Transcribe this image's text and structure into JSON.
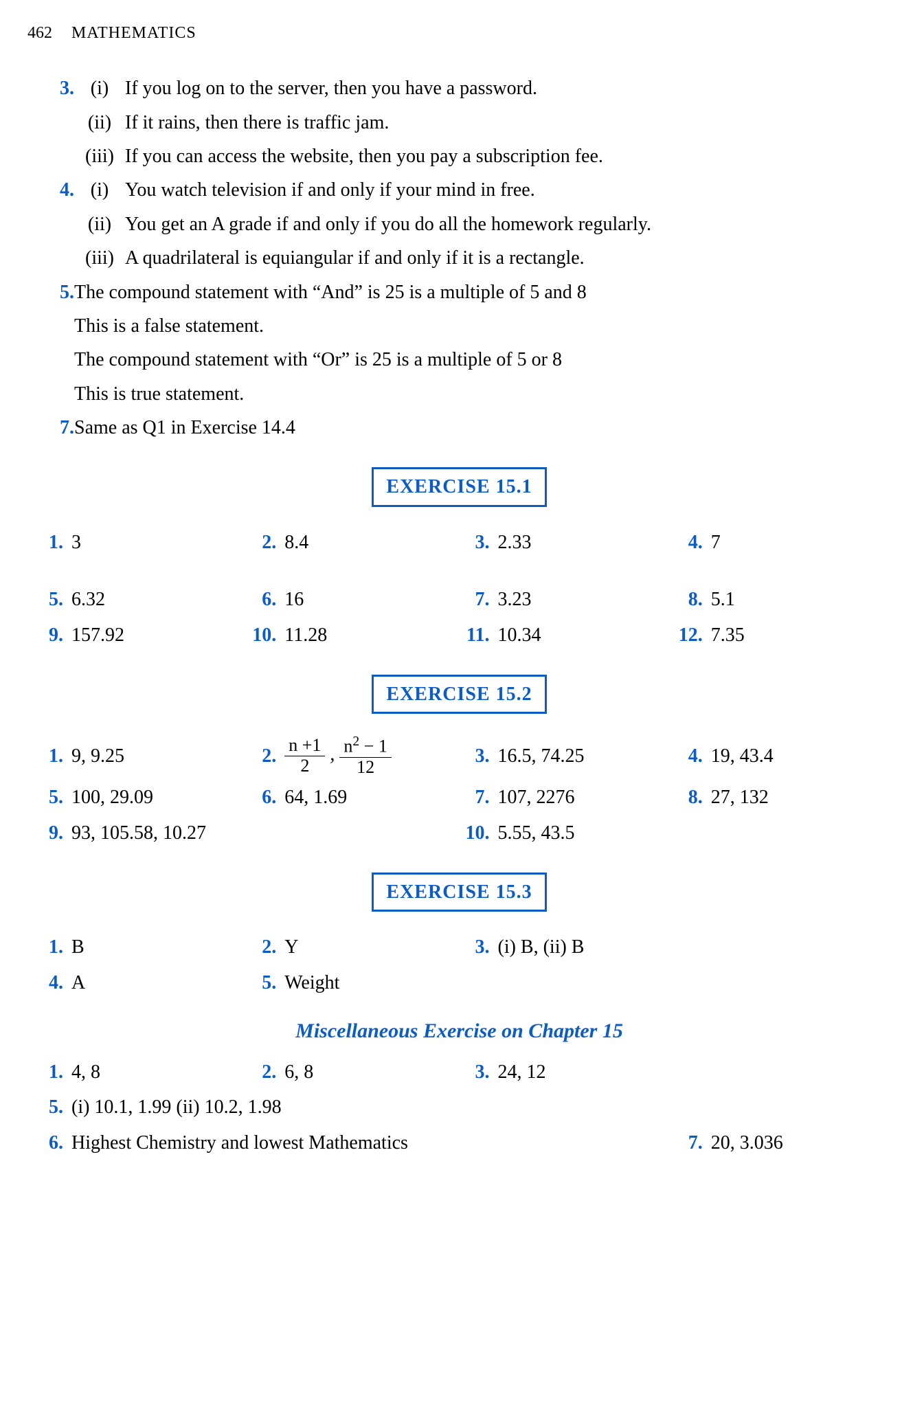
{
  "header": {
    "page_number": "462",
    "title": "MATHEMATICS"
  },
  "colors": {
    "accent": "#0b5cc4",
    "text": "#000000",
    "background": "#ffffff"
  },
  "q3": {
    "num": "3.",
    "i": {
      "label": "(i)",
      "text": "If  you log on to the server, then you have a password."
    },
    "ii": {
      "label": "(ii)",
      "text": "If it rains, then there is traffic jam."
    },
    "iii": {
      "label": "(iii)",
      "text": "If you can access the website, then you pay a subscription fee."
    }
  },
  "q4": {
    "num": "4.",
    "i": {
      "label": "(i)",
      "text": "You watch television if and only if your mind in free."
    },
    "ii": {
      "label": "(ii)",
      "text": "You get an A grade if and only if you do all the homework regularly."
    },
    "iii": {
      "label": "(iii)",
      "text": "A quadrilateral is equiangular if and only if it is a rectangle."
    }
  },
  "q5": {
    "num": "5.",
    "l1": "The compound statement with “And” is 25 is a multiple of 5 and 8",
    "l2": "This is a false statement.",
    "l3": "The compound statement with “Or”  is  25 is a multiple of 5 or 8",
    "l4": "This is true statement."
  },
  "q7": {
    "num": "7.",
    "text": "Same as Q1 in Exercise 14.4"
  },
  "ex151": {
    "title": "EXERCISE 15.1",
    "n1": "1.",
    "v1": "3",
    "n2": "2.",
    "v2": "8.4",
    "n3": "3.",
    "v3": "2.33",
    "n4": "4.",
    "v4": "7",
    "n5": "5.",
    "v5": "6.32",
    "n6": "6.",
    "v6": "16",
    "n7": "7.",
    "v7": "3.23",
    "n8": "8.",
    "v8": "5.1",
    "n9": "9.",
    "v9": "157.92",
    "n10": "10.",
    "v10": "11.28",
    "n11": "11.",
    "v11": "10.34",
    "n12": "12.",
    "v12": "7.35"
  },
  "ex152": {
    "title": "EXERCISE 15.2",
    "n1": "1.",
    "v1": "9, 9.25",
    "n2": "2.",
    "f1t": "n +1",
    "f1b": "2",
    "comma": ",",
    "f2t_a": "n",
    "f2t_b": "2",
    "f2t_c": " − 1",
    "f2b": "12",
    "n3": "3.",
    "v3": "16.5, 74.25",
    "n4": "4.",
    "v4": "19, 43.4",
    "n5": "5.",
    "v5": "100, 29.09",
    "n6": "6.",
    "v6": "64, 1.69",
    "n7": "7.",
    "v7": "107, 2276",
    "n8": "8.",
    "v8": "27, 132",
    "n9": "9.",
    "v9": "93, 105.58, 10.27",
    "n10": "10.",
    "v10": "5.55, 43.5"
  },
  "ex153": {
    "title": "EXERCISE 15.3",
    "n1": "1.",
    "v1": "B",
    "n2": "2.",
    "v2": "Y",
    "n3": "3.",
    "v3": "(i) B,   (ii) B",
    "n4": "4.",
    "v4": "A",
    "n5": "5.",
    "v5": "Weight"
  },
  "misc": {
    "title": "Miscellaneous Exercise on Chapter 15",
    "n1": "1.",
    "v1": "4, 8",
    "n2": "2.",
    "v2": "6, 8",
    "n3": "3.",
    "v3": "24, 12",
    "n5": "5.",
    "v5": "(i) 10.1,  1.99   (ii) 10.2,  1.98",
    "n6": "6.",
    "v6": "Highest Chemistry and lowest Mathematics",
    "n7": "7.",
    "v7": "20, 3.036"
  }
}
